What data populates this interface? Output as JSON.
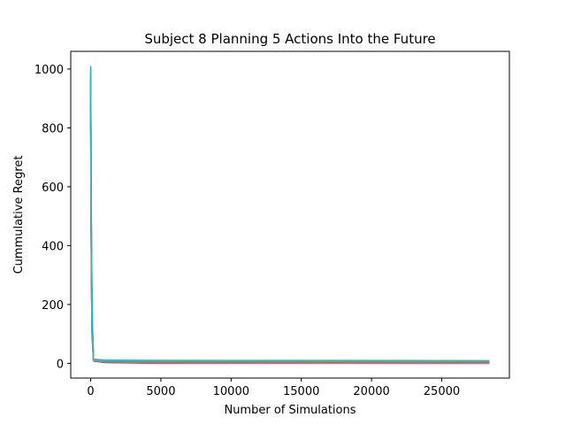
{
  "chart_data": {
    "type": "line",
    "title": "Subject 8 Planning 5 Actions Into the Future",
    "xlabel": "Number of Simulations",
    "ylabel": "Cummulative Regret",
    "xlim": [
      -1420,
      29820
    ],
    "ylim": [
      -50,
      1060
    ],
    "xticks": [
      0,
      5000,
      10000,
      15000,
      20000,
      25000
    ],
    "xtick_labels": [
      "0",
      "5000",
      "10000",
      "15000",
      "20000",
      "25000"
    ],
    "yticks": [
      0,
      200,
      400,
      600,
      800,
      1000
    ],
    "ytick_labels": [
      "0",
      "200",
      "400",
      "600",
      "800",
      "1000"
    ],
    "grid": false,
    "legend": "none",
    "series": [
      {
        "color": "#1f77b4",
        "x": [
          0,
          20,
          50,
          100,
          200,
          1000,
          5000,
          28400
        ],
        "y": [
          980,
          700,
          400,
          150,
          10,
          4,
          1,
          0.5
        ]
      },
      {
        "color": "#ff7f0e",
        "x": [
          0,
          20,
          50,
          100,
          200,
          1000,
          5000,
          28400
        ],
        "y": [
          950,
          650,
          350,
          120,
          9,
          5,
          3,
          2
        ]
      },
      {
        "color": "#2ca02c",
        "x": [
          0,
          20,
          50,
          100,
          200,
          1000,
          5000,
          28400
        ],
        "y": [
          960,
          680,
          380,
          140,
          11,
          8,
          7,
          6
        ]
      },
      {
        "color": "#d62728",
        "x": [
          0,
          20,
          50,
          100,
          200,
          1000,
          5000,
          28400
        ],
        "y": [
          900,
          600,
          300,
          100,
          8,
          3,
          0,
          0
        ]
      },
      {
        "color": "#9467bd",
        "x": [
          0,
          20,
          50,
          100,
          200,
          1000,
          5000,
          28400
        ],
        "y": [
          940,
          640,
          330,
          110,
          9,
          4,
          2,
          1
        ]
      },
      {
        "color": "#8c564b",
        "x": [
          0,
          20,
          50,
          100,
          200,
          1000,
          5000,
          28400
        ],
        "y": [
          920,
          620,
          320,
          105,
          8,
          3,
          1,
          0
        ]
      },
      {
        "color": "#e377c2",
        "x": [
          0,
          20,
          50,
          100,
          200,
          1000,
          5000,
          28400
        ],
        "y": [
          970,
          690,
          390,
          145,
          10,
          5,
          2,
          1
        ]
      },
      {
        "color": "#7f7f7f",
        "x": [
          0,
          20,
          50,
          100,
          200,
          1000,
          5000,
          28400
        ],
        "y": [
          990,
          720,
          420,
          160,
          12,
          6,
          4,
          3
        ]
      },
      {
        "color": "#bcbd22",
        "x": [
          0,
          20,
          50,
          100,
          200,
          1000,
          5000,
          28400
        ],
        "y": [
          1000,
          740,
          440,
          170,
          13,
          10,
          9,
          8
        ]
      },
      {
        "color": "#17becf",
        "x": [
          0,
          20,
          50,
          100,
          200,
          1000,
          5000,
          28400
        ],
        "y": [
          1010,
          760,
          460,
          180,
          14,
          11,
          10,
          9
        ]
      }
    ]
  }
}
